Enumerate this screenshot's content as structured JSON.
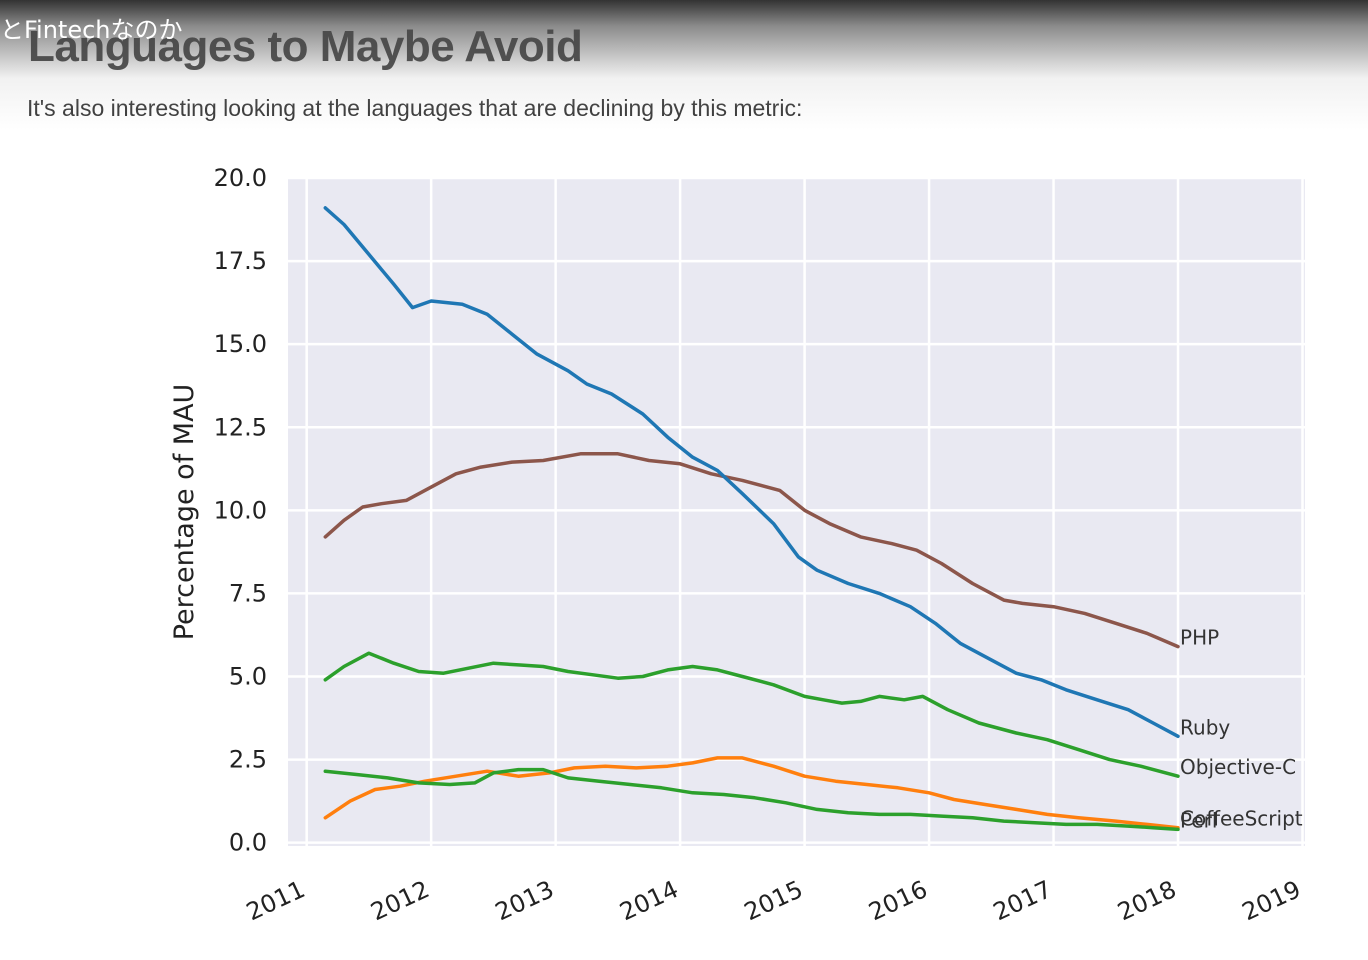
{
  "overlay": {
    "title": "とFintechなのか"
  },
  "slide": {
    "heading": "Languages to Maybe Avoid",
    "subtitle": "It's also interesting looking at the languages that are declining by this metric:"
  },
  "colors": {
    "background": "#ffffff",
    "plot_background": "#e9e9f2",
    "grid": "#ffffff",
    "PHP": "#8c564b",
    "Ruby": "#1f77b4",
    "Objective-C": "#2ca02c",
    "CoffeeScript": "#ff7f0e",
    "Perl": "#2ca02c"
  },
  "chart_data": {
    "type": "line",
    "title": "",
    "xlabel": "",
    "ylabel": "Percentage of MAU",
    "xlim": [
      2010.85,
      2019.02
    ],
    "ylim": [
      -0.1,
      20.0
    ],
    "x_ticks": [
      "2011",
      "2012",
      "2013",
      "2014",
      "2015",
      "2016",
      "2017",
      "2018",
      "2019"
    ],
    "y_ticks": [
      "0.0",
      "2.5",
      "5.0",
      "7.5",
      "10.0",
      "12.5",
      "15.0",
      "17.5",
      "20.0"
    ],
    "grid": true,
    "legend": "inline labels at line ends",
    "series": [
      {
        "name": "PHP",
        "color": "#8c564b",
        "x": [
          2011.15,
          2011.3,
          2011.45,
          2011.6,
          2011.8,
          2012.0,
          2012.2,
          2012.4,
          2012.65,
          2012.9,
          2013.2,
          2013.5,
          2013.75,
          2014.0,
          2014.25,
          2014.5,
          2014.8,
          2015.0,
          2015.2,
          2015.45,
          2015.7,
          2015.9,
          2016.1,
          2016.35,
          2016.6,
          2016.75,
          2017.0,
          2017.25,
          2017.5,
          2017.75,
          2018.0
        ],
        "values": [
          9.2,
          9.7,
          10.1,
          10.2,
          10.3,
          10.7,
          11.1,
          11.3,
          11.45,
          11.5,
          11.7,
          11.7,
          11.5,
          11.4,
          11.1,
          10.9,
          10.6,
          10.0,
          9.6,
          9.2,
          9.0,
          8.8,
          8.4,
          7.8,
          7.3,
          7.2,
          7.1,
          6.9,
          6.6,
          6.3,
          5.9
        ]
      },
      {
        "name": "Ruby",
        "color": "#1f77b4",
        "x": [
          2011.15,
          2011.3,
          2011.5,
          2011.7,
          2011.85,
          2012.0,
          2012.25,
          2012.45,
          2012.65,
          2012.85,
          2013.1,
          2013.25,
          2013.45,
          2013.7,
          2013.9,
          2014.1,
          2014.3,
          2014.5,
          2014.75,
          2014.95,
          2015.1,
          2015.35,
          2015.6,
          2015.85,
          2016.05,
          2016.25,
          2016.5,
          2016.7,
          2016.9,
          2017.1,
          2017.35,
          2017.6,
          2017.8,
          2018.0
        ],
        "values": [
          19.1,
          18.6,
          17.7,
          16.8,
          16.1,
          16.3,
          16.2,
          15.9,
          15.3,
          14.7,
          14.2,
          13.8,
          13.5,
          12.9,
          12.2,
          11.6,
          11.2,
          10.5,
          9.6,
          8.6,
          8.2,
          7.8,
          7.5,
          7.1,
          6.6,
          6.0,
          5.5,
          5.1,
          4.9,
          4.6,
          4.3,
          4.0,
          3.6,
          3.2
        ]
      },
      {
        "name": "Objective-C",
        "color": "#2ca02c",
        "x": [
          2011.15,
          2011.3,
          2011.5,
          2011.7,
          2011.9,
          2012.1,
          2012.3,
          2012.5,
          2012.7,
          2012.9,
          2013.1,
          2013.3,
          2013.5,
          2013.7,
          2013.9,
          2014.1,
          2014.3,
          2014.5,
          2014.75,
          2015.0,
          2015.15,
          2015.3,
          2015.45,
          2015.6,
          2015.8,
          2015.95,
          2016.15,
          2016.4,
          2016.7,
          2016.95,
          2017.2,
          2017.45,
          2017.7,
          2018.0
        ],
        "values": [
          4.9,
          5.3,
          5.7,
          5.4,
          5.15,
          5.1,
          5.25,
          5.4,
          5.35,
          5.3,
          5.15,
          5.05,
          4.95,
          5.0,
          5.2,
          5.3,
          5.2,
          5.0,
          4.75,
          4.4,
          4.3,
          4.2,
          4.25,
          4.4,
          4.3,
          4.4,
          4.0,
          3.6,
          3.3,
          3.1,
          2.8,
          2.5,
          2.3,
          2.0
        ]
      },
      {
        "name": "CoffeeScript",
        "color": "#ff7f0e",
        "x": [
          2011.15,
          2011.35,
          2011.55,
          2011.75,
          2011.95,
          2012.2,
          2012.45,
          2012.7,
          2012.95,
          2013.15,
          2013.4,
          2013.65,
          2013.9,
          2014.1,
          2014.3,
          2014.5,
          2014.75,
          2015.0,
          2015.25,
          2015.5,
          2015.75,
          2016.0,
          2016.2,
          2016.45,
          2016.7,
          2016.95,
          2017.2,
          2017.5,
          2017.75,
          2018.0
        ],
        "values": [
          0.75,
          1.25,
          1.6,
          1.7,
          1.85,
          2.0,
          2.15,
          2.0,
          2.1,
          2.25,
          2.3,
          2.25,
          2.3,
          2.4,
          2.55,
          2.55,
          2.3,
          2.0,
          1.85,
          1.75,
          1.65,
          1.5,
          1.3,
          1.15,
          1.0,
          0.85,
          0.75,
          0.65,
          0.55,
          0.45
        ]
      },
      {
        "name": "Perl",
        "color": "#2ca02c",
        "x": [
          2011.15,
          2011.4,
          2011.65,
          2011.9,
          2012.15,
          2012.35,
          2012.5,
          2012.7,
          2012.9,
          2013.1,
          2013.35,
          2013.6,
          2013.85,
          2014.1,
          2014.35,
          2014.6,
          2014.85,
          2015.1,
          2015.35,
          2015.6,
          2015.85,
          2016.1,
          2016.35,
          2016.6,
          2016.85,
          2017.1,
          2017.35,
          2017.6,
          2017.8,
          2018.0
        ],
        "values": [
          2.15,
          2.05,
          1.95,
          1.8,
          1.75,
          1.8,
          2.1,
          2.2,
          2.2,
          1.95,
          1.85,
          1.75,
          1.65,
          1.5,
          1.45,
          1.35,
          1.2,
          1.0,
          0.9,
          0.85,
          0.85,
          0.8,
          0.75,
          0.65,
          0.6,
          0.55,
          0.55,
          0.5,
          0.45,
          0.4
        ]
      }
    ]
  }
}
